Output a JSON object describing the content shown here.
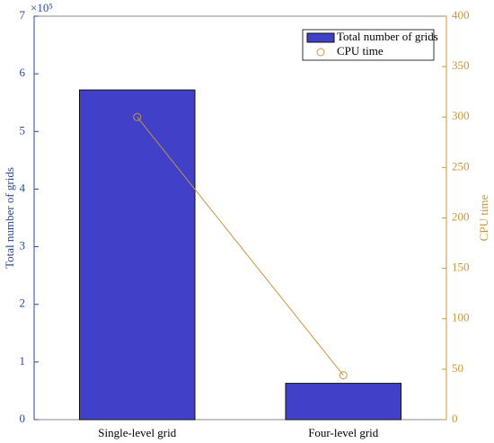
{
  "chart_data": {
    "type": "bar",
    "categories": [
      "Single-level grid",
      "Four-level grid"
    ],
    "series": [
      {
        "name": "Total number of grids",
        "type": "bar",
        "axis": "y",
        "color": "#4040c8",
        "values": [
          5.72,
          0.63
        ]
      },
      {
        "name": "CPU time",
        "type": "line",
        "axis": "y2",
        "color": "#c8963c",
        "values": [
          300,
          44
        ]
      }
    ],
    "ylabel": "Total number of grids",
    "y_multiplier": "×10⁵",
    "y2label": "CPU time",
    "ylim": [
      0,
      7
    ],
    "yticks": [
      0,
      1,
      2,
      3,
      4,
      5,
      6,
      7
    ],
    "y2lim": [
      0,
      400
    ],
    "y2ticks": [
      0,
      50,
      100,
      150,
      200,
      250,
      300,
      350,
      400
    ],
    "legend": "upper right"
  }
}
